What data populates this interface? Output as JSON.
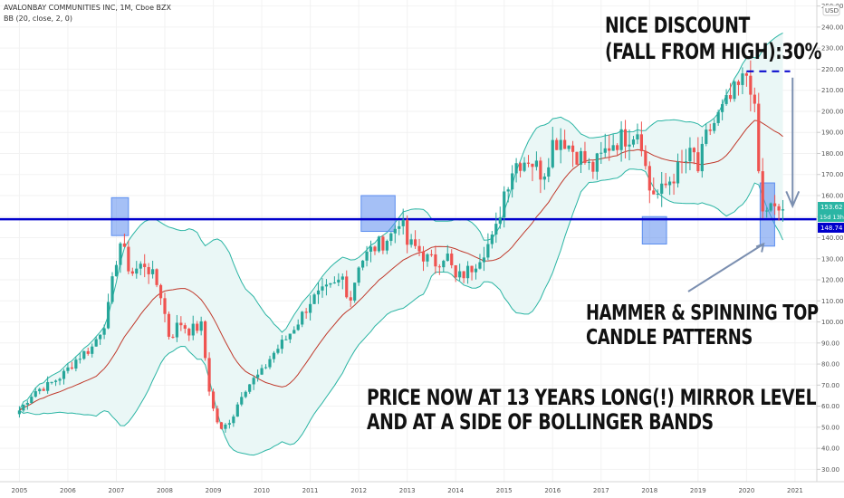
{
  "header": {
    "symbol_line": "AVALONBAY COMMUNITIES INC, 1M, Cboe BZX",
    "indicator_line": "BB (20, close, 2, 0)"
  },
  "currency_label": "USD",
  "annotations": {
    "discount_line1": "NICE DISCOUNT",
    "discount_line2": "(FALL FROM HIGH):30%",
    "patterns_line1": "HAMMER & SPINNING TOP",
    "patterns_line2": "CANDLE PATTERNS",
    "price_line1": "PRICE NOW AT 13 YEARS LONG(!) MIRROR LEVEL",
    "price_line2": "AND AT A SIDE OF BOLLINGER BANDS"
  },
  "price_tags": {
    "last": "153.62",
    "countdown": "15d 13h",
    "level": "148.74"
  },
  "colors": {
    "up": "#26a69a",
    "down": "#ef5350",
    "level_line": "#0000cc",
    "band": "#2bb5a4",
    "basis": "#c0392b",
    "band_fill": "#eaf7f6",
    "box": "#5b8def",
    "arrow": "#7b8fb0"
  },
  "chart_data": {
    "type": "candlestick",
    "title": "AVALONBAY COMMUNITIES INC, 1M, Cboe BZX",
    "x_ticks": [
      "2005",
      "2006",
      "2007",
      "2008",
      "2009",
      "2010",
      "2011",
      "2012",
      "2013",
      "2014",
      "2015",
      "2016",
      "2017",
      "2018",
      "2019",
      "2020",
      "2021"
    ],
    "y_ticks": [
      30,
      40,
      50,
      60,
      70,
      80,
      90,
      100,
      110,
      120,
      130,
      140,
      150,
      160,
      170,
      180,
      190,
      200,
      210,
      220,
      230,
      240,
      250
    ],
    "ylim": [
      25,
      252
    ],
    "horizontal_level": 148.74,
    "last_price": 153.62,
    "path": [
      [
        2005.0,
        58
      ],
      [
        2005.3,
        67
      ],
      [
        2005.6,
        70
      ],
      [
        2005.9,
        75
      ],
      [
        2006.2,
        83
      ],
      [
        2006.5,
        88
      ],
      [
        2006.8,
        102
      ],
      [
        2007.0,
        130
      ],
      [
        2007.05,
        140
      ],
      [
        2007.3,
        123
      ],
      [
        2007.6,
        128
      ],
      [
        2007.9,
        115
      ],
      [
        2008.1,
        92
      ],
      [
        2008.3,
        100
      ],
      [
        2008.5,
        96
      ],
      [
        2008.75,
        98
      ],
      [
        2008.95,
        62
      ],
      [
        2009.15,
        48
      ],
      [
        2009.4,
        55
      ],
      [
        2009.6,
        67
      ],
      [
        2009.8,
        72
      ],
      [
        2010.0,
        76
      ],
      [
        2010.2,
        84
      ],
      [
        2010.5,
        92
      ],
      [
        2010.8,
        102
      ],
      [
        2011.0,
        110
      ],
      [
        2011.2,
        113
      ],
      [
        2011.5,
        117
      ],
      [
        2011.7,
        122
      ],
      [
        2011.8,
        108
      ],
      [
        2012.0,
        128
      ],
      [
        2012.3,
        135
      ],
      [
        2012.5,
        138
      ],
      [
        2012.7,
        142
      ],
      [
        2012.85,
        150
      ],
      [
        2013.0,
        137
      ],
      [
        2013.2,
        135
      ],
      [
        2013.4,
        130
      ],
      [
        2013.6,
        128
      ],
      [
        2013.8,
        133
      ],
      [
        2014.0,
        120
      ],
      [
        2014.3,
        125
      ],
      [
        2014.6,
        135
      ],
      [
        2014.8,
        140
      ],
      [
        2015.0,
        162
      ],
      [
        2015.2,
        175
      ],
      [
        2015.5,
        178
      ],
      [
        2015.8,
        170
      ],
      [
        2016.0,
        185
      ],
      [
        2016.2,
        188
      ],
      [
        2016.4,
        182
      ],
      [
        2016.6,
        178
      ],
      [
        2016.8,
        172
      ],
      [
        2017.0,
        178
      ],
      [
        2017.2,
        185
      ],
      [
        2017.5,
        188
      ],
      [
        2017.8,
        192
      ],
      [
        2017.9,
        175
      ],
      [
        2018.0,
        163
      ],
      [
        2018.2,
        160
      ],
      [
        2018.4,
        167
      ],
      [
        2018.7,
        175
      ],
      [
        2018.9,
        180
      ],
      [
        2019.0,
        172
      ],
      [
        2019.2,
        190
      ],
      [
        2019.5,
        200
      ],
      [
        2019.75,
        208
      ],
      [
        2019.9,
        213
      ],
      [
        2020.05,
        220
      ],
      [
        2020.1,
        210
      ],
      [
        2020.2,
        192
      ],
      [
        2020.3,
        150
      ],
      [
        2020.45,
        155
      ],
      [
        2020.6,
        152
      ],
      [
        2020.75,
        154
      ]
    ],
    "annotation_text": [
      "NICE DISCOUNT (FALL FROM HIGH):30%",
      "HAMMER & SPINNING TOP CANDLE PATTERNS",
      "PRICE NOW AT 13 YEARS LONG(!) MIRROR LEVEL AND AT A SIDE OF BOLLINGER BANDS"
    ]
  }
}
